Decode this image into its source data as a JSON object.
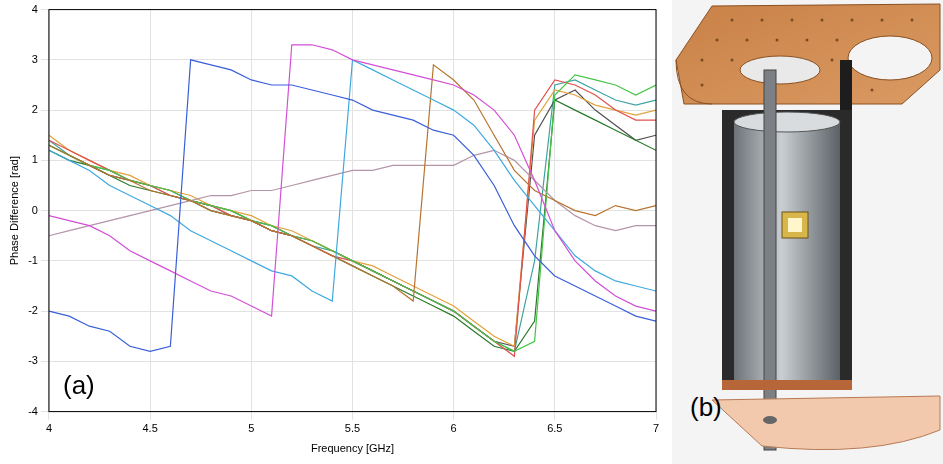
{
  "chart_data": {
    "type": "line",
    "x_label": "Frequency [GHz]",
    "y_label": "Phase Difference [rad]",
    "annotations": [
      "(a)"
    ],
    "x": [
      4.0,
      4.1,
      4.2,
      4.3,
      4.4,
      4.5,
      4.6,
      4.7,
      4.8,
      4.9,
      5.0,
      5.1,
      5.2,
      5.3,
      5.4,
      5.5,
      5.6,
      5.7,
      5.8,
      5.9,
      6.0,
      6.1,
      6.2,
      6.3,
      6.4,
      6.5,
      6.6,
      6.7,
      6.8,
      6.9,
      7.0
    ],
    "series": [
      {
        "color": "#3a5fd9",
        "values": [
          -2.0,
          -2.1,
          -2.3,
          -2.4,
          -2.7,
          -2.8,
          -2.7,
          3.0,
          2.9,
          2.8,
          2.6,
          2.5,
          2.5,
          2.4,
          2.3,
          2.2,
          2.0,
          1.9,
          1.8,
          1.6,
          1.5,
          1.1,
          0.5,
          -0.3,
          -0.9,
          -1.3,
          -1.5,
          -1.7,
          -1.9,
          -2.1,
          -2.2
        ]
      },
      {
        "color": "#d24fd6",
        "values": [
          -0.1,
          -0.2,
          -0.3,
          -0.5,
          -0.8,
          -1.0,
          -1.2,
          -1.4,
          -1.6,
          -1.7,
          -1.9,
          -2.1,
          3.3,
          3.3,
          3.2,
          3.0,
          2.9,
          2.8,
          2.7,
          2.6,
          2.5,
          2.3,
          2.0,
          1.5,
          0.6,
          -0.4,
          -1.0,
          -1.4,
          -1.7,
          -1.9,
          -2.0
        ]
      },
      {
        "color": "#3fa9e0",
        "values": [
          1.2,
          1.0,
          0.8,
          0.5,
          0.3,
          0.1,
          -0.1,
          -0.4,
          -0.6,
          -0.8,
          -1.0,
          -1.2,
          -1.3,
          -1.6,
          -1.8,
          3.0,
          2.8,
          2.6,
          2.4,
          2.2,
          2.0,
          1.7,
          1.2,
          0.6,
          0.1,
          -0.4,
          -0.9,
          -1.2,
          -1.4,
          -1.5,
          -1.6
        ]
      },
      {
        "color": "#b8742f",
        "values": [
          1.3,
          1.1,
          0.9,
          0.7,
          0.6,
          0.4,
          0.3,
          0.2,
          0.0,
          -0.1,
          -0.2,
          -0.4,
          -0.5,
          -0.7,
          -0.9,
          -1.1,
          -1.3,
          -1.5,
          -1.8,
          2.9,
          2.6,
          2.2,
          1.5,
          0.8,
          0.4,
          0.2,
          0.0,
          -0.1,
          0.1,
          0.0,
          0.1
        ]
      },
      {
        "color": "#b495a8",
        "values": [
          -0.5,
          -0.4,
          -0.3,
          -0.2,
          -0.1,
          0.0,
          0.1,
          0.2,
          0.3,
          0.3,
          0.4,
          0.4,
          0.5,
          0.6,
          0.7,
          0.8,
          0.8,
          0.9,
          0.9,
          0.9,
          0.9,
          1.1,
          1.2,
          1.0,
          0.6,
          0.2,
          -0.1,
          -0.3,
          -0.4,
          -0.3,
          -0.3
        ]
      },
      {
        "color": "#45c447",
        "values": [
          1.3,
          1.1,
          0.9,
          0.8,
          0.6,
          0.5,
          0.4,
          0.2,
          0.1,
          0.0,
          -0.2,
          -0.3,
          -0.5,
          -0.6,
          -0.8,
          -1.0,
          -1.2,
          -1.4,
          -1.6,
          -1.8,
          -2.0,
          -2.3,
          -2.6,
          -2.8,
          -2.6,
          2.3,
          2.7,
          2.6,
          2.5,
          2.3,
          2.5
        ]
      },
      {
        "color": "#e0524f",
        "values": [
          1.4,
          1.2,
          1.0,
          0.8,
          0.6,
          0.5,
          0.3,
          0.2,
          0.1,
          -0.1,
          -0.2,
          -0.4,
          -0.5,
          -0.7,
          -0.9,
          -1.0,
          -1.2,
          -1.4,
          -1.6,
          -1.8,
          -2.0,
          -2.3,
          -2.6,
          -2.9,
          2.0,
          2.6,
          2.5,
          2.3,
          2.0,
          1.8,
          1.8
        ]
      },
      {
        "color": "#e3a13c",
        "values": [
          1.5,
          1.2,
          1.0,
          0.8,
          0.7,
          0.5,
          0.4,
          0.3,
          0.1,
          0.0,
          -0.1,
          -0.3,
          -0.4,
          -0.6,
          -0.8,
          -1.0,
          -1.1,
          -1.3,
          -1.5,
          -1.7,
          -1.9,
          -2.2,
          -2.5,
          -2.7,
          1.8,
          2.4,
          2.3,
          2.1,
          2.0,
          1.9,
          2.0
        ]
      },
      {
        "color": "#2a7a2a",
        "values": [
          1.2,
          1.0,
          0.9,
          0.7,
          0.5,
          0.4,
          0.3,
          0.2,
          0.0,
          -0.1,
          -0.2,
          -0.4,
          -0.5,
          -0.7,
          -0.9,
          -1.1,
          -1.3,
          -1.5,
          -1.7,
          -1.9,
          -2.1,
          -2.4,
          -2.7,
          -2.8,
          -2.2,
          2.2,
          2.0,
          1.8,
          1.6,
          1.4,
          1.2
        ]
      },
      {
        "color": "#505050",
        "values": [
          1.3,
          1.1,
          0.9,
          0.7,
          0.6,
          0.5,
          0.4,
          0.2,
          0.1,
          0.0,
          -0.2,
          -0.3,
          -0.5,
          -0.6,
          -0.8,
          -1.0,
          -1.2,
          -1.4,
          -1.6,
          -1.8,
          -2.0,
          -2.3,
          -2.6,
          -2.7,
          1.5,
          2.2,
          2.4,
          2.0,
          1.7,
          1.4,
          1.5
        ]
      },
      {
        "color": "#3fa3a0",
        "values": [
          1.4,
          1.1,
          0.9,
          0.8,
          0.6,
          0.5,
          0.3,
          0.2,
          0.1,
          -0.1,
          -0.2,
          -0.4,
          -0.5,
          -0.7,
          -0.8,
          -1.0,
          -1.2,
          -1.4,
          -1.6,
          -1.8,
          -2.0,
          -2.3,
          -2.6,
          -2.8,
          -1.0,
          2.5,
          2.6,
          2.4,
          2.2,
          2.1,
          2.2
        ]
      }
    ],
    "xlim": [
      4,
      7
    ],
    "xticks": [
      4,
      4.5,
      5,
      5.5,
      6,
      6.5,
      7
    ],
    "ylim": [
      -4,
      4
    ],
    "yticks": [
      -4,
      -3,
      -2,
      -1,
      0,
      1,
      2,
      3,
      4
    ],
    "grid": true
  },
  "image_panel": {
    "annotations": [
      "(b)"
    ]
  }
}
